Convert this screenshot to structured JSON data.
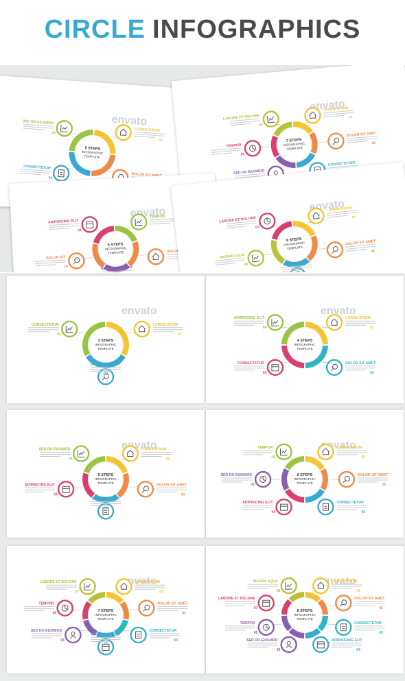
{
  "title": {
    "part1": "CIRCLE",
    "part2": "INFOGRAPHICS"
  },
  "watermark": "envato",
  "colors": {
    "yellow": "#f4c431",
    "orange": "#f08a48",
    "red": "#ea5a4a",
    "pink": "#d9406d",
    "purple": "#8761ad",
    "blue": "#3aa9cf",
    "teal": "#2fb5c2",
    "green": "#9cc444",
    "olive": "#b9c23a",
    "grey": "#4a4a4a"
  },
  "collage": [
    {
      "center": [
        "5 STEPS",
        "INFOGRAPHIC",
        "TEMPLATE"
      ],
      "items": [
        {
          "label": "LOREM IPSUM",
          "num": "01",
          "color": "yellow",
          "icon": "house-icon"
        },
        {
          "label": "DOLOR SIT AMET",
          "num": "02",
          "color": "orange",
          "icon": "magnifier-icon"
        },
        {
          "label": "CONSECTETUR",
          "num": "03",
          "color": "blue",
          "icon": "clipboard-icon"
        },
        {
          "label": "SED DO EIUSMOD",
          "num": "05",
          "color": "green",
          "icon": "chart-icon"
        }
      ]
    },
    {
      "center": [
        "7 STEPS",
        "INFOGRAPHIC",
        "TEMPLATE"
      ],
      "items": [
        {
          "label": "LOREM IPSUM",
          "num": "01",
          "color": "yellow",
          "icon": "house-icon"
        },
        {
          "label": "DOLOR SIT AMET",
          "num": "02",
          "color": "orange",
          "icon": "magnifier-icon"
        },
        {
          "label": "CONSECTETUR",
          "num": "03",
          "color": "blue",
          "icon": "clipboard-icon"
        },
        {
          "label": "SED DO EIUSMOD",
          "num": "05",
          "color": "purple",
          "icon": "person-icon"
        },
        {
          "label": "TEMPOR",
          "num": "06",
          "color": "pink",
          "icon": "pie-icon"
        },
        {
          "label": "LABORE ET DOLORE",
          "num": "07",
          "color": "olive",
          "icon": "chart-icon"
        }
      ]
    },
    {
      "center": [
        "6 STEPS",
        "INFOGRAPHIC",
        "TEMPLATE"
      ],
      "items": [
        {
          "label": "TEMPOR",
          "num": "06",
          "color": "green",
          "icon": "chart-icon"
        },
        {
          "label": "DOLOR SIT",
          "num": "02",
          "color": "orange",
          "icon": "house-icon"
        },
        {
          "label": "SED DO EIUSMOD",
          "num": "05",
          "color": "purple",
          "icon": "pie-icon"
        },
        {
          "label": "DOLOR SIT",
          "num": "03",
          "color": "orange",
          "icon": "magnifier-icon"
        },
        {
          "label": "ADIPISICING ELIT",
          "num": "04",
          "color": "pink",
          "icon": "calendar-icon"
        }
      ]
    },
    {
      "center": [
        "8 STEPS",
        "INFOGRAPHIC",
        "TEMPLATE"
      ],
      "items": [
        {
          "label": "LOREM IPSUM",
          "num": "01",
          "color": "yellow",
          "icon": "house-icon"
        },
        {
          "label": "DOLOR SIT AMET",
          "num": "02",
          "color": "orange",
          "icon": "magnifier-icon"
        },
        {
          "label": "CONSECTETUR",
          "num": "03",
          "color": "blue",
          "icon": "clipboard-icon"
        },
        {
          "label": "MAGNA AQUA",
          "num": "08",
          "color": "olive",
          "icon": "chart-icon"
        },
        {
          "label": "LABORE ET DOLORE",
          "num": "07",
          "color": "pink",
          "icon": "pie-icon"
        }
      ]
    }
  ],
  "cards": [
    {
      "center": [
        "3 STEPS",
        "INFOGRAPHIC",
        "TEMPLATE"
      ],
      "items": [
        {
          "label": "LOREM IPSUM",
          "num": "01",
          "color": "yellow",
          "icon": "house-icon"
        },
        {
          "label": "DOLOR SIT AMET",
          "num": "02",
          "color": "blue",
          "icon": "magnifier-icon"
        },
        {
          "label": "CONSECTETUR",
          "num": "03",
          "color": "green",
          "icon": "chart-icon"
        }
      ]
    },
    {
      "center": [
        "4 STEPS",
        "INFOGRAPHIC",
        "TEMPLATE"
      ],
      "items": [
        {
          "label": "LOREM IPSUM",
          "num": "01",
          "color": "yellow",
          "icon": "house-icon"
        },
        {
          "label": "DOLOR SIT AMET",
          "num": "02",
          "color": "teal",
          "icon": "magnifier-icon"
        },
        {
          "label": "CONSECTETUR",
          "num": "03",
          "color": "pink",
          "icon": "calendar-icon"
        },
        {
          "label": "ADIPISICING ELIT",
          "num": "04",
          "color": "green",
          "icon": "chart-icon"
        }
      ]
    },
    {
      "center": [
        "5 STEPS",
        "INFOGRAPHIC",
        "TEMPLATE"
      ],
      "items": [
        {
          "label": "LOREM IPSUM",
          "num": "01",
          "color": "yellow",
          "icon": "house-icon"
        },
        {
          "label": "DOLOR SIT AMET",
          "num": "02",
          "color": "orange",
          "icon": "magnifier-icon"
        },
        {
          "label": "CONSECTETUR",
          "num": "03",
          "color": "blue",
          "icon": "clipboard-icon"
        },
        {
          "label": "ADIPISICING ELIT",
          "num": "04",
          "color": "pink",
          "icon": "calendar-icon"
        },
        {
          "label": "SED DO EIUSMOD",
          "num": "05",
          "color": "green",
          "icon": "chart-icon"
        }
      ]
    },
    {
      "center": [
        "6 STEPS",
        "INFOGRAPHIC",
        "TEMPLATE"
      ],
      "items": [
        {
          "label": "LOREM IPSUM",
          "num": "01",
          "color": "yellow",
          "icon": "house-icon"
        },
        {
          "label": "DOLOR SIT AMET",
          "num": "02",
          "color": "orange",
          "icon": "magnifier-icon"
        },
        {
          "label": "CONSECTETUR",
          "num": "03",
          "color": "blue",
          "icon": "clipboard-icon"
        },
        {
          "label": "ADIPISICING ELIT",
          "num": "04",
          "color": "pink",
          "icon": "calendar-icon"
        },
        {
          "label": "SED DO EIUSMOD",
          "num": "05",
          "color": "purple",
          "icon": "pie-icon"
        },
        {
          "label": "TEMPOR",
          "num": "06",
          "color": "green",
          "icon": "chart-icon"
        }
      ]
    },
    {
      "center": [
        "7 STEPS",
        "INFOGRAPHIC",
        "TEMPLATE"
      ],
      "items": [
        {
          "label": "LOREM IPSUM",
          "num": "01",
          "color": "yellow",
          "icon": "house-icon"
        },
        {
          "label": "DOLOR SIT AMET",
          "num": "02",
          "color": "orange",
          "icon": "magnifier-icon"
        },
        {
          "label": "CONSECTETUR",
          "num": "03",
          "color": "teal",
          "icon": "clipboard-icon"
        },
        {
          "label": "ADIPISICING ELIT",
          "num": "04",
          "color": "blue",
          "icon": "calendar-icon"
        },
        {
          "label": "SED DO EIUSMOD",
          "num": "05",
          "color": "purple",
          "icon": "person-icon"
        },
        {
          "label": "TEMPOR",
          "num": "06",
          "color": "pink",
          "icon": "pie-icon"
        },
        {
          "label": "LABORE ET DOLORE",
          "num": "07",
          "color": "olive",
          "icon": "chart-icon"
        }
      ]
    },
    {
      "center": [
        "8 STEPS",
        "INFOGRAPHIC",
        "TEMPLATE"
      ],
      "items": [
        {
          "label": "LOREM IPSUM",
          "num": "01",
          "color": "yellow",
          "icon": "house-icon"
        },
        {
          "label": "DOLOR SIT AMET",
          "num": "02",
          "color": "orange",
          "icon": "magnifier-icon"
        },
        {
          "label": "CONSECTETUR",
          "num": "03",
          "color": "teal",
          "icon": "clipboard-icon"
        },
        {
          "label": "ADIPISICING ELIT",
          "num": "04",
          "color": "blue",
          "icon": "calendar-icon"
        },
        {
          "label": "SED DO EIUSMOD",
          "num": "05",
          "color": "purple",
          "icon": "person-icon"
        },
        {
          "label": "TEMPOR",
          "num": "06",
          "color": "purple",
          "icon": "pie-icon"
        },
        {
          "label": "LABORE ET DOLORE",
          "num": "07",
          "color": "pink",
          "icon": "calendar-icon"
        },
        {
          "label": "MAGNA AQUA",
          "num": "08",
          "color": "olive",
          "icon": "chart-icon"
        }
      ]
    }
  ]
}
